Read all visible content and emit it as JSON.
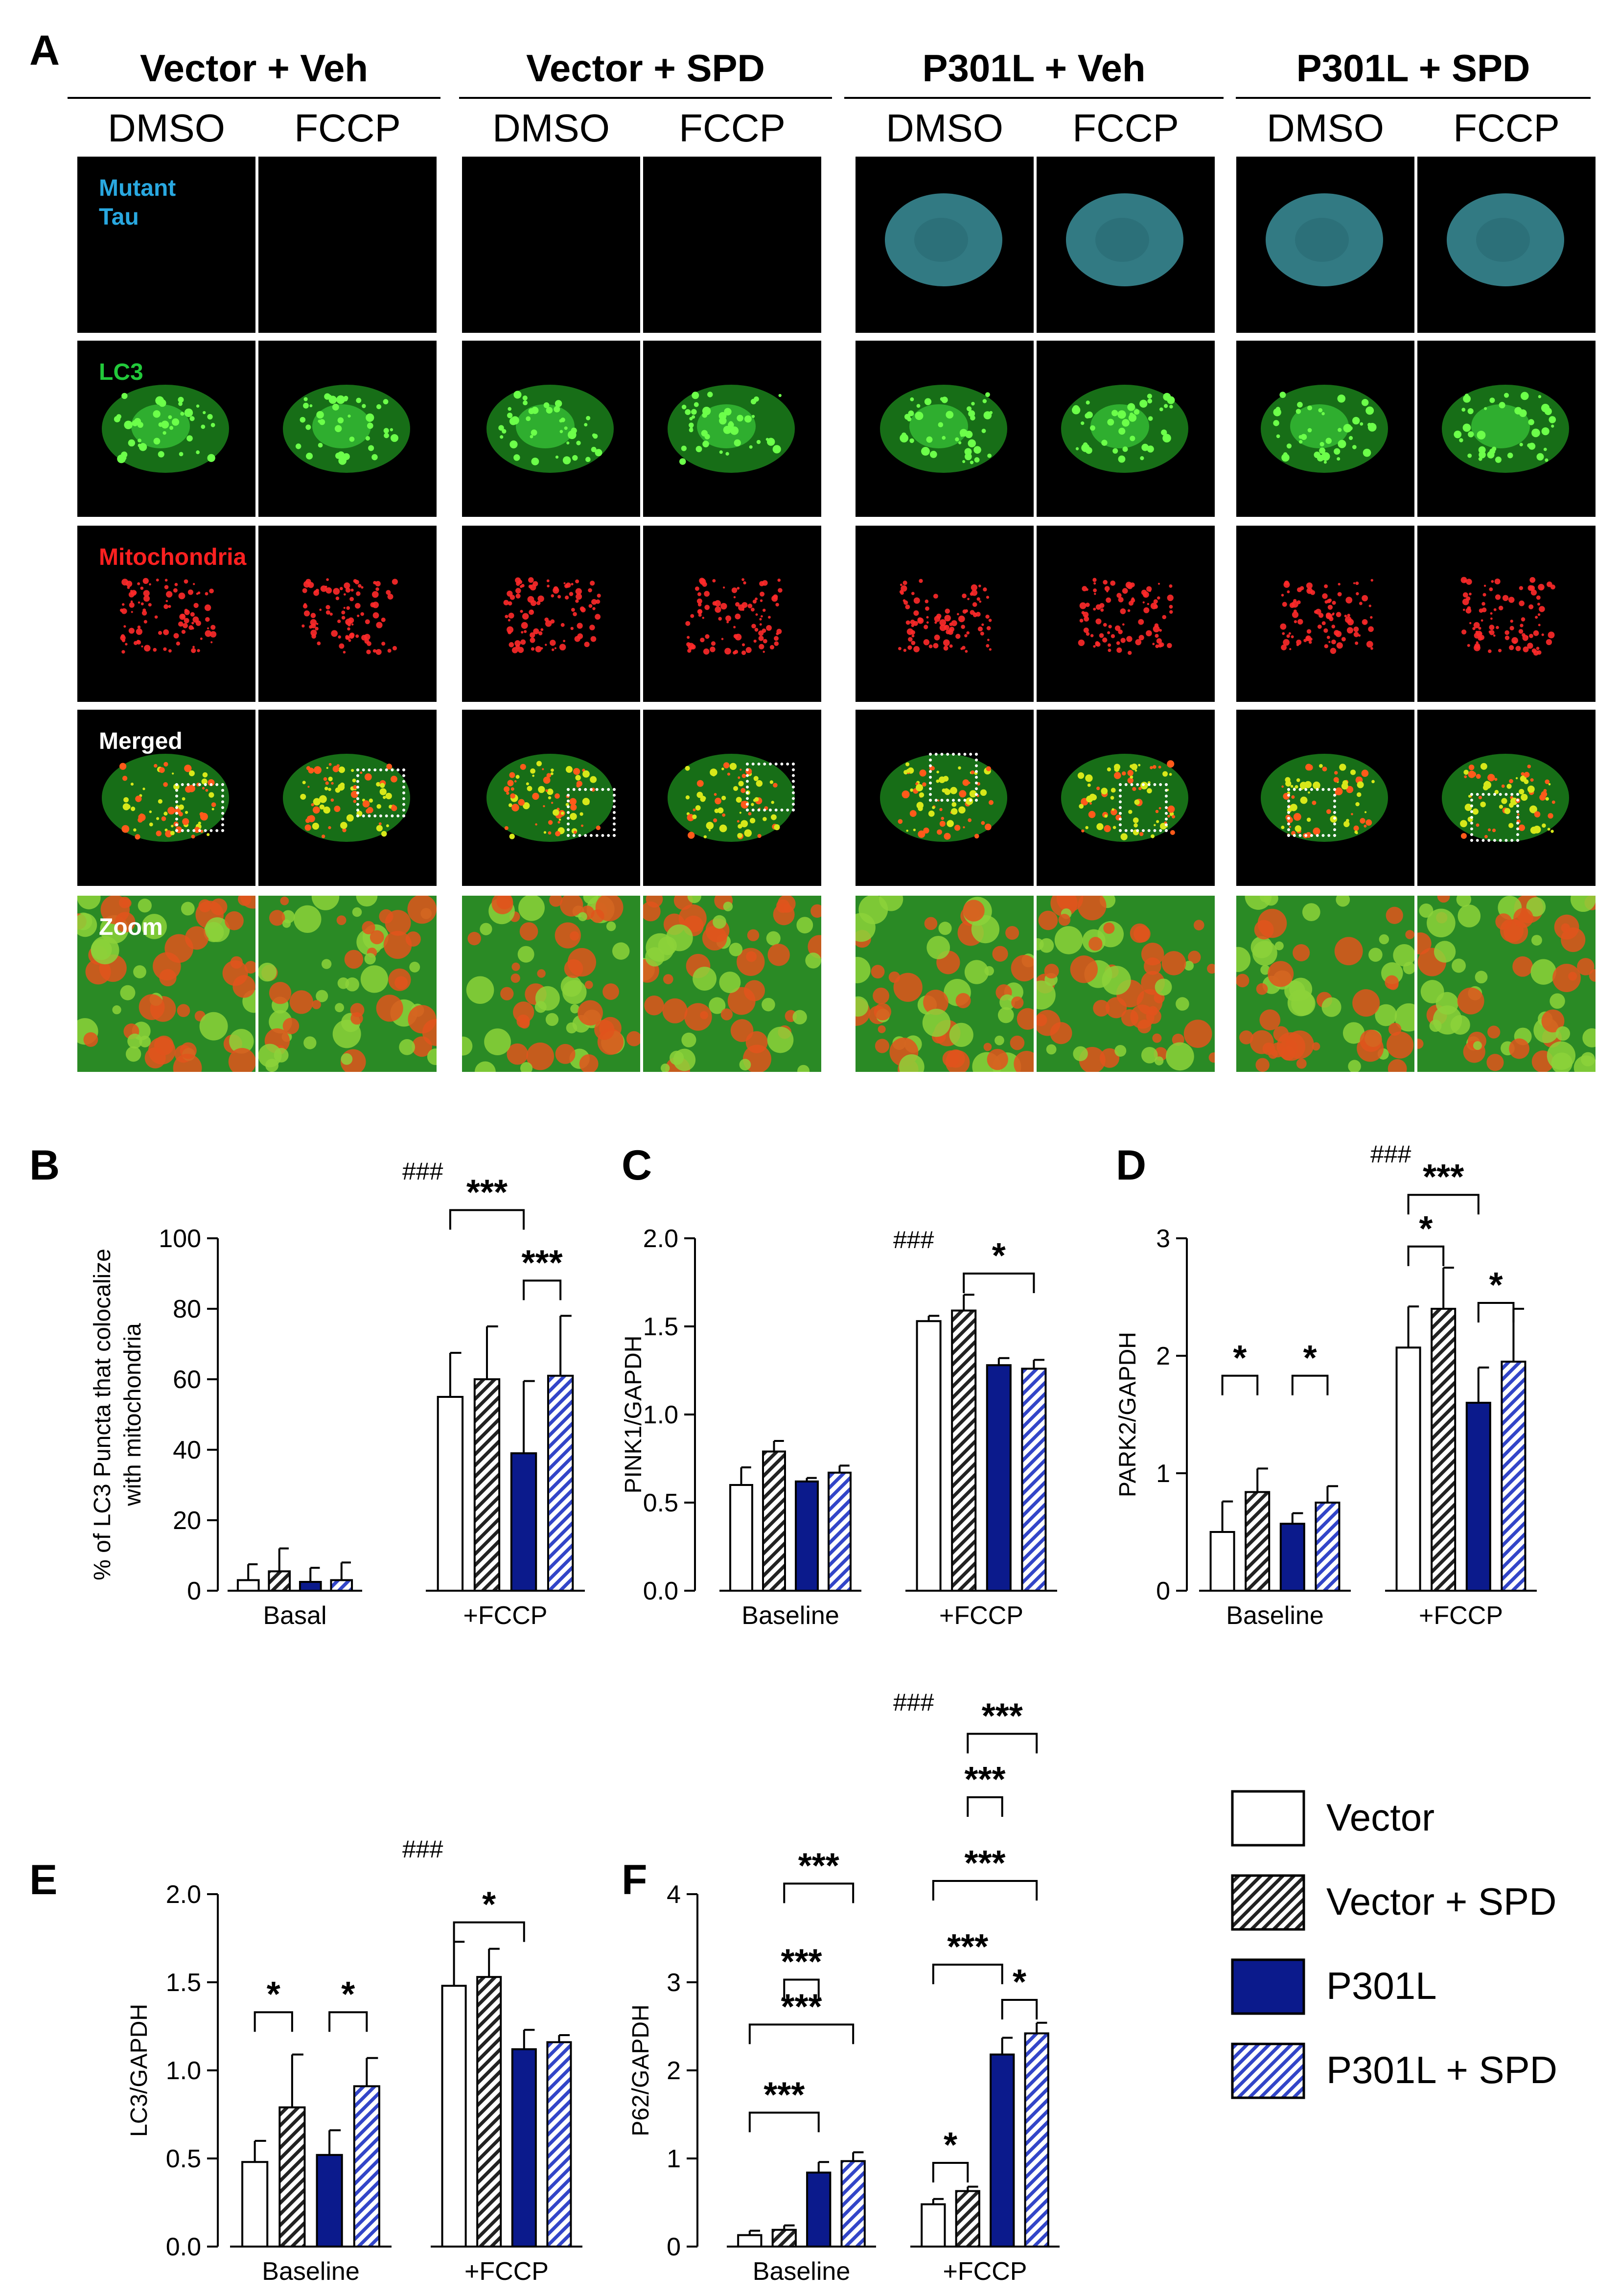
{
  "panel_a": {
    "letter": "A",
    "groups": [
      {
        "title": "Vector + Veh",
        "cols": [
          "DMSO",
          "FCCP"
        ]
      },
      {
        "title": "Vector + SPD",
        "cols": [
          "DMSO",
          "FCCP"
        ]
      },
      {
        "title": "P301L + Veh",
        "cols": [
          "DMSO",
          "FCCP"
        ]
      },
      {
        "title": "P301L + SPD",
        "cols": [
          "DMSO",
          "FCCP"
        ]
      }
    ],
    "rows": [
      {
        "label": "Mutant Tau",
        "color": "#29a8e0"
      },
      {
        "label": "LC3",
        "color": "#22c93a"
      },
      {
        "label": "Mitochondria",
        "color": "#ff2020"
      },
      {
        "label": "Merged",
        "color": "#ffffff"
      },
      {
        "label": "Zoom",
        "color": "#ffffff"
      }
    ]
  },
  "legend": {
    "items": [
      {
        "label": "Vector",
        "pattern": "white"
      },
      {
        "label": "Vector + SPD",
        "pattern": "white-hatch"
      },
      {
        "label": "P301L",
        "pattern": "blue"
      },
      {
        "label": "P301L + SPD",
        "pattern": "blue-hatch"
      }
    ],
    "colors": {
      "blue": "#0b1a8c",
      "hatch_blue": "#3245c8"
    }
  },
  "chart_data": [
    {
      "id": "B",
      "type": "bar",
      "letter": "B",
      "ylabel_lines": [
        "% of LC3 Puncta that colocalize",
        "with mitochondria"
      ],
      "ylim": [
        0,
        100
      ],
      "yticks": [
        "0",
        "20",
        "40",
        "60",
        "80",
        "100"
      ],
      "categories": [
        "Basal",
        "+FCCP"
      ],
      "series": [
        {
          "name": "Vector",
          "values": [
            3,
            55
          ],
          "errors": [
            4.5,
            12.5
          ]
        },
        {
          "name": "Vector + SPD",
          "values": [
            5.5,
            60
          ],
          "errors": [
            6.5,
            15
          ]
        },
        {
          "name": "P301L",
          "values": [
            2.5,
            39
          ],
          "errors": [
            4,
            20.5
          ]
        },
        {
          "name": "P301L + SPD",
          "values": [
            3,
            61
          ],
          "errors": [
            5,
            17
          ]
        }
      ],
      "hash": "###",
      "sig": [
        {
          "label": "***",
          "group": 1,
          "from": 0,
          "to": 2,
          "y": 108
        },
        {
          "label": "***",
          "group": 1,
          "from": 2,
          "to": 3,
          "y": 88
        }
      ]
    },
    {
      "id": "C",
      "type": "bar",
      "letter": "C",
      "ylabel_lines": [
        "PINK1/GAPDH"
      ],
      "ylim": [
        0,
        2
      ],
      "yticks": [
        "0.0",
        "0.5",
        "1.0",
        "1.5",
        "2.0"
      ],
      "categories": [
        "Baseline",
        "+FCCP"
      ],
      "series": [
        {
          "name": "Vector",
          "values": [
            0.6,
            1.53
          ],
          "errors": [
            0.1,
            0.03
          ]
        },
        {
          "name": "Vector + SPD",
          "values": [
            0.79,
            1.59
          ],
          "errors": [
            0.06,
            0.09
          ]
        },
        {
          "name": "P301L",
          "values": [
            0.62,
            1.28
          ],
          "errors": [
            0.02,
            0.04
          ]
        },
        {
          "name": "P301L + SPD",
          "values": [
            0.67,
            1.26
          ],
          "errors": [
            0.04,
            0.05
          ]
        }
      ],
      "hash": "###",
      "sig": [
        {
          "label": "*",
          "group": 1,
          "from": 1,
          "to": 3,
          "y": 1.8
        }
      ]
    },
    {
      "id": "D",
      "type": "bar",
      "letter": "D",
      "ylabel_lines": [
        "PARK2/GAPDH"
      ],
      "ylim": [
        0,
        3
      ],
      "yticks": [
        "0",
        "1",
        "2",
        "3"
      ],
      "categories": [
        "Baseline",
        "+FCCP"
      ],
      "series": [
        {
          "name": "Vector",
          "values": [
            0.5,
            2.07
          ],
          "errors": [
            0.26,
            0.35
          ]
        },
        {
          "name": "Vector + SPD",
          "values": [
            0.84,
            2.4
          ],
          "errors": [
            0.2,
            0.35
          ]
        },
        {
          "name": "P301L",
          "values": [
            0.57,
            1.6
          ],
          "errors": [
            0.09,
            0.3
          ]
        },
        {
          "name": "P301L + SPD",
          "values": [
            0.75,
            1.95
          ],
          "errors": [
            0.14,
            0.45
          ]
        }
      ],
      "hash": "###",
      "sig": [
        {
          "label": "*",
          "group": 0,
          "from": 0,
          "to": 1,
          "y": 1.83
        },
        {
          "label": "*",
          "group": 0,
          "from": 2,
          "to": 3,
          "y": 1.83
        },
        {
          "label": "***",
          "group": 1,
          "from": 0,
          "to": 2,
          "y": 3.37
        },
        {
          "label": "*",
          "group": 1,
          "from": 0,
          "to": 1,
          "y": 2.93
        },
        {
          "label": "*",
          "group": 1,
          "from": 2,
          "to": 3,
          "y": 2.45
        }
      ]
    },
    {
      "id": "E",
      "type": "bar",
      "letter": "E",
      "ylabel_lines": [
        "LC3/GAPDH"
      ],
      "ylim": [
        0,
        2
      ],
      "yticks": [
        "0.0",
        "0.5",
        "1.0",
        "1.5",
        "2.0"
      ],
      "categories": [
        "Baseline",
        "+FCCP"
      ],
      "series": [
        {
          "name": "Vector",
          "values": [
            0.48,
            1.48
          ],
          "errors": [
            0.12,
            0.25
          ]
        },
        {
          "name": "Vector + SPD",
          "values": [
            0.79,
            1.53
          ],
          "errors": [
            0.3,
            0.16
          ]
        },
        {
          "name": "P301L",
          "values": [
            0.52,
            1.12
          ],
          "errors": [
            0.14,
            0.11
          ]
        },
        {
          "name": "P301L + SPD",
          "values": [
            0.91,
            1.16
          ],
          "errors": [
            0.16,
            0.04
          ]
        }
      ],
      "hash": "###",
      "sig": [
        {
          "label": "*",
          "group": 0,
          "from": 0,
          "to": 1,
          "y": 1.33
        },
        {
          "label": "*",
          "group": 0,
          "from": 2,
          "to": 3,
          "y": 1.33
        },
        {
          "label": "*",
          "group": 1,
          "from": 0,
          "to": 2,
          "y": 1.84
        }
      ]
    },
    {
      "id": "F",
      "type": "bar",
      "letter": "F",
      "ylabel_lines": [
        "P62/GAPDH"
      ],
      "ylim": [
        0,
        4
      ],
      "yticks": [
        "0",
        "1",
        "2",
        "3",
        "4"
      ],
      "categories": [
        "Baseline",
        "+FCCP"
      ],
      "series": [
        {
          "name": "Vector",
          "values": [
            0.13,
            0.48
          ],
          "errors": [
            0.05,
            0.06
          ]
        },
        {
          "name": "Vector + SPD",
          "values": [
            0.19,
            0.63
          ],
          "errors": [
            0.05,
            0.05
          ]
        },
        {
          "name": "P301L",
          "values": [
            0.84,
            2.18
          ],
          "errors": [
            0.12,
            0.19
          ]
        },
        {
          "name": "P301L + SPD",
          "values": [
            0.97,
            2.42
          ],
          "errors": [
            0.1,
            0.12
          ]
        }
      ],
      "hash": "###",
      "sig": [
        {
          "label": "***",
          "group": 0,
          "from": 0,
          "to": 2,
          "y": 1.52
        },
        {
          "label": "***",
          "group": 0,
          "from": 0,
          "to": 3,
          "y": 2.52
        },
        {
          "label": "***",
          "group": 0,
          "from": 1,
          "to": 2,
          "y": 3.03
        },
        {
          "label": "***",
          "group": 0,
          "from": 1,
          "to": 3,
          "y": 4.12
        },
        {
          "label": "*",
          "group": 1,
          "from": 0,
          "to": 1,
          "y": 0.95
        },
        {
          "label": "*",
          "group": 1,
          "from": 2,
          "to": 3,
          "y": 2.8
        },
        {
          "label": "***",
          "group": 1,
          "from": 0,
          "to": 2,
          "y": 3.2
        },
        {
          "label": "***",
          "group": 1,
          "from": 0,
          "to": 3,
          "y": 4.15
        },
        {
          "label": "***",
          "group": 1,
          "from": 1,
          "to": 2,
          "y": 5.1
        },
        {
          "label": "***",
          "group": 1,
          "from": 1,
          "to": 3,
          "y": 5.82
        }
      ]
    }
  ]
}
